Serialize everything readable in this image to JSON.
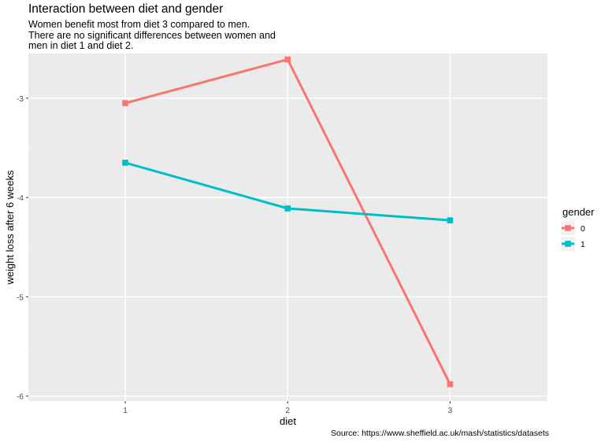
{
  "chart_data": {
    "type": "line",
    "title": "Interaction between diet and gender",
    "subtitle": [
      "Women benefit most from diet 3 compared to men.",
      "There are no significant differences between women and",
      "men in diet 1 and diet 2."
    ],
    "caption": "Source: https://www.sheffield.ac.uk/mash/statistics/datasets",
    "xlabel": "diet",
    "ylabel": "weight loss after 6 weeks",
    "categories": [
      "1",
      "2",
      "3"
    ],
    "y_ticks": [
      -3,
      -4,
      -5,
      -6
    ],
    "y_tick_labels": [
      "-3",
      "-4",
      "-5",
      "-6"
    ],
    "ylim": [
      -6.05,
      -2.55
    ],
    "grid": true,
    "legend": {
      "title": "gender",
      "position": "right"
    },
    "series": [
      {
        "name": "0",
        "color": "#F8766D",
        "values": [
          -3.05,
          -2.61,
          -5.88
        ]
      },
      {
        "name": "1",
        "color": "#00BFC4",
        "values": [
          -3.65,
          -4.11,
          -4.23
        ]
      }
    ]
  },
  "colors": {
    "panel": "#EBEBEB",
    "grid_major": "#FFFFFF",
    "grid_minor": "#F3F3F3",
    "text_axis": "#4D4D4D"
  }
}
